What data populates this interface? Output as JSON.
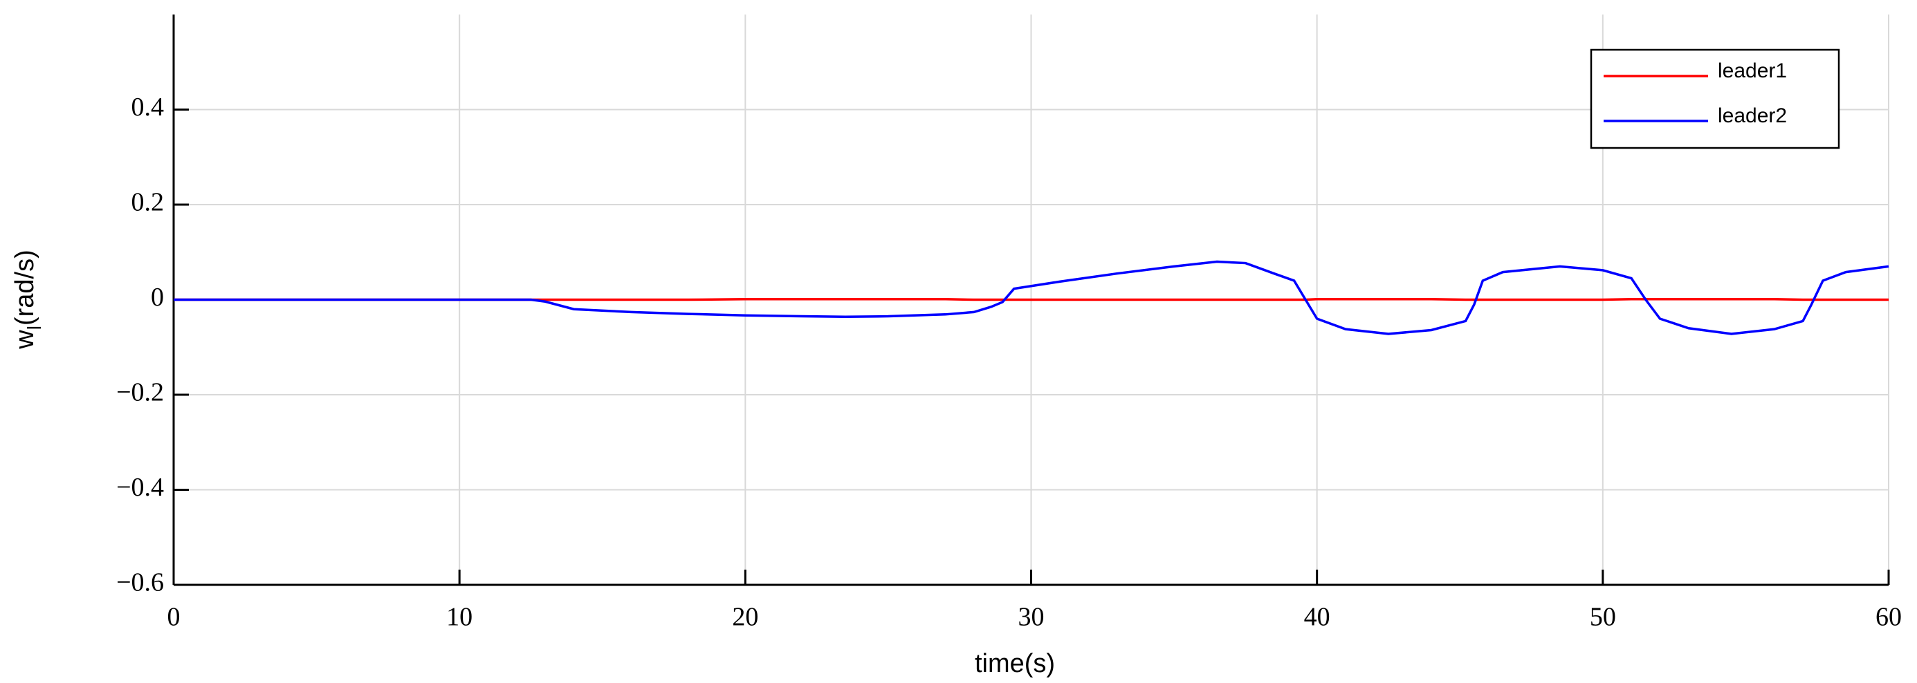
{
  "chart_data": {
    "type": "line",
    "xlabel": "time(s)",
    "ylabel": {
      "base": "w",
      "subscript": "l",
      "rest": "(rad/s)"
    },
    "x": [
      0,
      5,
      10,
      12.5,
      13,
      14,
      16,
      18,
      20,
      22,
      23.5,
      25,
      27,
      28,
      28.6,
      29,
      29.4,
      31,
      33,
      35,
      36.5,
      37.5,
      38.5,
      39.2,
      39.6,
      40,
      41,
      42.5,
      44,
      45.2,
      45.5,
      45.8,
      46.5,
      48.5,
      50,
      51,
      51.5,
      52,
      53,
      54.5,
      56,
      57,
      57.3,
      57.7,
      58.5,
      60
    ],
    "series": [
      {
        "name": "leader1",
        "color": "#ff0000",
        "values": [
          0,
          0,
          0,
          0,
          0,
          0,
          0,
          0,
          0.001,
          0.001,
          0.001,
          0.001,
          0.001,
          0,
          0,
          0,
          0,
          0,
          0,
          0,
          0,
          0,
          0,
          0,
          0,
          0.001,
          0.001,
          0.001,
          0.001,
          0,
          0,
          0,
          0,
          0,
          0,
          0.001,
          0.001,
          0.001,
          0.001,
          0.001,
          0.001,
          0,
          0,
          0,
          0,
          0
        ]
      },
      {
        "name": "leader2",
        "color": "#0000ff",
        "values": [
          0,
          0,
          0,
          0,
          -0.004,
          -0.02,
          -0.026,
          -0.03,
          -0.033,
          -0.035,
          -0.036,
          -0.035,
          -0.031,
          -0.026,
          -0.015,
          -0.005,
          0.023,
          0.038,
          0.055,
          0.07,
          0.08,
          0.077,
          0.055,
          0.04,
          0.0,
          -0.04,
          -0.062,
          -0.072,
          -0.064,
          -0.045,
          -0.01,
          0.04,
          0.058,
          0.07,
          0.062,
          0.045,
          0.0,
          -0.04,
          -0.06,
          -0.072,
          -0.062,
          -0.045,
          -0.01,
          0.04,
          0.058,
          0.07
        ]
      }
    ],
    "xlim": [
      0,
      60
    ],
    "xticks": [
      0,
      10,
      20,
      30,
      40,
      50,
      60
    ],
    "ylim": [
      -0.6,
      0.6
    ],
    "yticks": [
      {
        "value": -0.6,
        "label": "−0.6"
      },
      {
        "value": -0.4,
        "label": "−0.4"
      },
      {
        "value": -0.2,
        "label": "−0.2"
      },
      0,
      0.2,
      0.4
    ],
    "grid": true,
    "legend": "upper-right"
  }
}
